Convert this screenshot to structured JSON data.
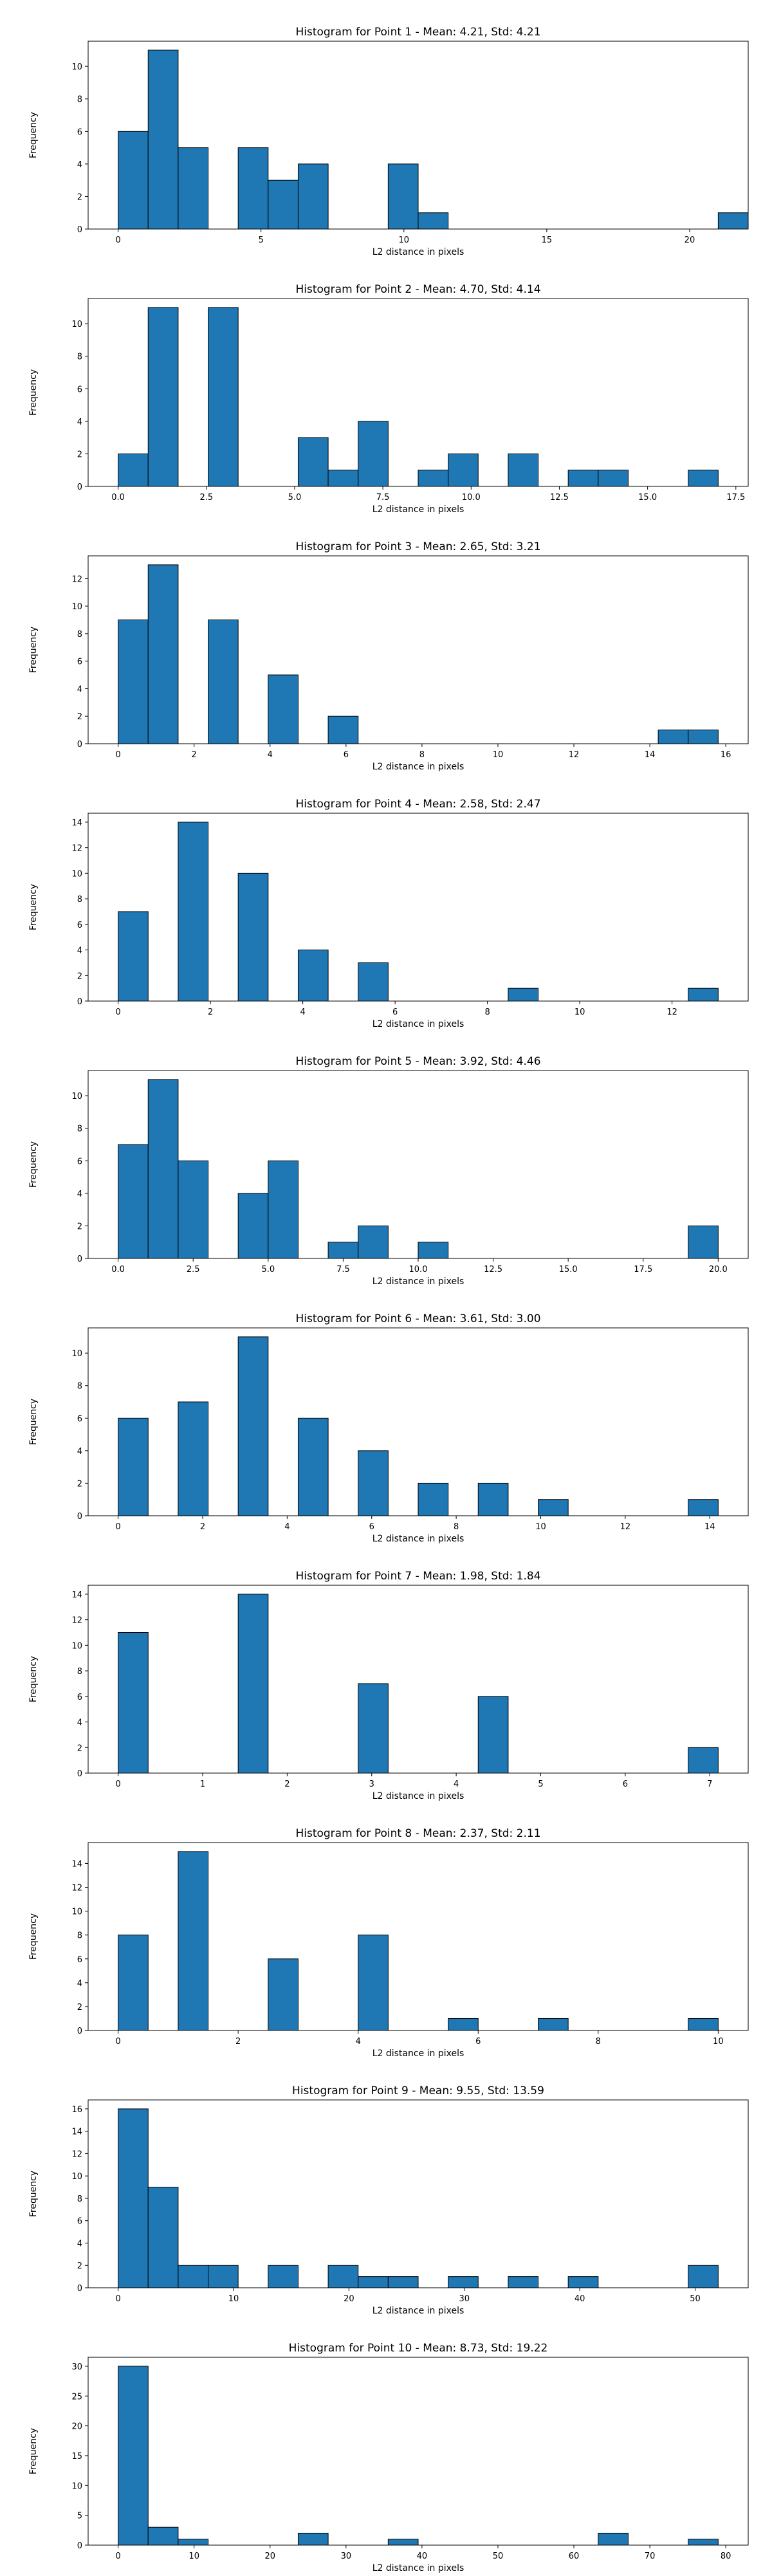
{
  "chart_data": [
    {
      "type": "bar",
      "title": "Histogram for Point 1 - Mean: 4.21, Std: 4.21",
      "xlabel": "L2 distance in pixels",
      "ylabel": "Frequency",
      "bin_width": 1.05,
      "xlim": [
        -1.05,
        22.05
      ],
      "ylim": [
        0,
        11.55
      ],
      "xticks": [
        0,
        5,
        10,
        15,
        20
      ],
      "yticks": [
        0,
        2,
        4,
        6,
        8,
        10
      ],
      "bins": [
        [
          0.0,
          6
        ],
        [
          1.05,
          11
        ],
        [
          2.1,
          5
        ],
        [
          4.2,
          5
        ],
        [
          5.25,
          3
        ],
        [
          6.3,
          4
        ],
        [
          9.45,
          4
        ],
        [
          10.5,
          1
        ],
        [
          21.0,
          1
        ]
      ],
      "color": "#1f77b4"
    },
    {
      "type": "bar",
      "title": "Histogram for Point 2 - Mean: 4.70, Std: 4.14",
      "xlabel": "L2 distance in pixels",
      "ylabel": "Frequency",
      "bin_width": 0.85,
      "xlim": [
        -0.85,
        17.85
      ],
      "ylim": [
        0,
        11.55
      ],
      "xticks": [
        0.0,
        2.5,
        5.0,
        7.5,
        10.0,
        12.5,
        15.0,
        17.5
      ],
      "yticks": [
        0,
        2,
        4,
        6,
        8,
        10
      ],
      "bins": [
        [
          0.0,
          2
        ],
        [
          0.85,
          11
        ],
        [
          2.55,
          11
        ],
        [
          5.1,
          3
        ],
        [
          5.95,
          1
        ],
        [
          6.8,
          4
        ],
        [
          8.5,
          1
        ],
        [
          9.35,
          2
        ],
        [
          11.05,
          2
        ],
        [
          12.75,
          1
        ],
        [
          13.6,
          1
        ],
        [
          16.15,
          1
        ]
      ],
      "color": "#1f77b4"
    },
    {
      "type": "bar",
      "title": "Histogram for Point 3 - Mean: 2.65, Std: 3.21",
      "xlabel": "L2 distance in pixels",
      "ylabel": "Frequency",
      "bin_width": 0.79,
      "xlim": [
        -0.79,
        16.59
      ],
      "ylim": [
        0,
        13.65
      ],
      "xticks": [
        0,
        2,
        4,
        6,
        8,
        10,
        12,
        14,
        16
      ],
      "yticks": [
        0,
        2,
        4,
        6,
        8,
        10,
        12
      ],
      "bins": [
        [
          0.0,
          9
        ],
        [
          0.79,
          13
        ],
        [
          2.37,
          9
        ],
        [
          3.95,
          5
        ],
        [
          5.53,
          2
        ],
        [
          14.22,
          1
        ],
        [
          15.01,
          1
        ]
      ],
      "color": "#1f77b4"
    },
    {
      "type": "bar",
      "title": "Histogram for Point 4 - Mean: 2.58, Std: 2.47",
      "xlabel": "L2 distance in pixels",
      "ylabel": "Frequency",
      "bin_width": 0.65,
      "xlim": [
        -0.65,
        13.65
      ],
      "ylim": [
        0,
        14.7
      ],
      "xticks": [
        0,
        2,
        4,
        6,
        8,
        10,
        12
      ],
      "yticks": [
        0,
        2,
        4,
        6,
        8,
        10,
        12,
        14
      ],
      "bins": [
        [
          0.0,
          7
        ],
        [
          1.3,
          14
        ],
        [
          2.6,
          10
        ],
        [
          3.9,
          4
        ],
        [
          5.2,
          3
        ],
        [
          8.45,
          1
        ],
        [
          12.35,
          1
        ]
      ],
      "color": "#1f77b4"
    },
    {
      "type": "bar",
      "title": "Histogram for Point 5 - Mean: 3.92, Std: 4.46",
      "xlabel": "L2 distance in pixels",
      "ylabel": "Frequency",
      "bin_width": 1.0,
      "xlim": [
        -1.0,
        21.0
      ],
      "ylim": [
        0,
        11.55
      ],
      "xticks": [
        0.0,
        2.5,
        5.0,
        7.5,
        10.0,
        12.5,
        15.0,
        17.5,
        20.0
      ],
      "yticks": [
        0,
        2,
        4,
        6,
        8,
        10
      ],
      "bins": [
        [
          0.0,
          7
        ],
        [
          1.0,
          11
        ],
        [
          2.0,
          6
        ],
        [
          4.0,
          4
        ],
        [
          5.0,
          6
        ],
        [
          7.0,
          1
        ],
        [
          8.0,
          2
        ],
        [
          10.0,
          1
        ],
        [
          19.0,
          2
        ]
      ],
      "color": "#1f77b4"
    },
    {
      "type": "bar",
      "title": "Histogram for Point 6 - Mean: 3.61, Std: 3.00",
      "xlabel": "L2 distance in pixels",
      "ylabel": "Frequency",
      "bin_width": 0.71,
      "xlim": [
        -0.71,
        14.91
      ],
      "ylim": [
        0,
        11.55
      ],
      "xticks": [
        0,
        2,
        4,
        6,
        8,
        10,
        12,
        14
      ],
      "yticks": [
        0,
        2,
        4,
        6,
        8,
        10
      ],
      "bins": [
        [
          0.0,
          6
        ],
        [
          1.42,
          7
        ],
        [
          2.84,
          11
        ],
        [
          4.26,
          6
        ],
        [
          5.68,
          4
        ],
        [
          7.1,
          2
        ],
        [
          8.52,
          2
        ],
        [
          9.94,
          1
        ],
        [
          13.49,
          1
        ]
      ],
      "color": "#1f77b4"
    },
    {
      "type": "bar",
      "title": "Histogram for Point 7 - Mean: 1.98, Std: 1.84",
      "xlabel": "L2 distance in pixels",
      "ylabel": "Frequency",
      "bin_width": 0.355,
      "xlim": [
        -0.355,
        7.455
      ],
      "ylim": [
        0,
        14.7
      ],
      "xticks": [
        0,
        1,
        2,
        3,
        4,
        5,
        6,
        7
      ],
      "yticks": [
        0,
        2,
        4,
        6,
        8,
        10,
        12,
        14
      ],
      "bins": [
        [
          0.0,
          11
        ],
        [
          1.42,
          14
        ],
        [
          2.84,
          7
        ],
        [
          4.26,
          6
        ],
        [
          6.745,
          2
        ]
      ],
      "color": "#1f77b4"
    },
    {
      "type": "bar",
      "title": "Histogram for Point 8 - Mean: 2.37, Std: 2.11",
      "xlabel": "L2 distance in pixels",
      "ylabel": "Frequency",
      "bin_width": 0.5,
      "xlim": [
        -0.5,
        10.5
      ],
      "ylim": [
        0,
        15.75
      ],
      "xticks": [
        0,
        2,
        4,
        6,
        8,
        10
      ],
      "yticks": [
        0,
        2,
        4,
        6,
        8,
        10,
        12,
        14
      ],
      "bins": [
        [
          0.0,
          8
        ],
        [
          1.0,
          15
        ],
        [
          2.5,
          6
        ],
        [
          4.0,
          8
        ],
        [
          5.5,
          1
        ],
        [
          7.0,
          1
        ],
        [
          9.5,
          1
        ]
      ],
      "color": "#1f77b4"
    },
    {
      "type": "bar",
      "title": "Histogram for Point 9 - Mean: 9.55, Std: 13.59",
      "xlabel": "L2 distance in pixels",
      "ylabel": "Frequency",
      "bin_width": 2.6,
      "xlim": [
        -2.6,
        54.6
      ],
      "ylim": [
        0,
        16.8
      ],
      "xticks": [
        0,
        10,
        20,
        30,
        40,
        50
      ],
      "yticks": [
        0,
        2,
        4,
        6,
        8,
        10,
        12,
        14,
        16
      ],
      "bins": [
        [
          0.0,
          16
        ],
        [
          2.6,
          9
        ],
        [
          5.2,
          2
        ],
        [
          7.8,
          2
        ],
        [
          13.0,
          2
        ],
        [
          18.2,
          2
        ],
        [
          20.8,
          1
        ],
        [
          23.4,
          1
        ],
        [
          28.6,
          1
        ],
        [
          33.8,
          1
        ],
        [
          39.0,
          1
        ],
        [
          49.4,
          2
        ]
      ],
      "color": "#1f77b4"
    },
    {
      "type": "bar",
      "title": "Histogram for Point 10 - Mean: 8.73, Std: 19.22",
      "xlabel": "L2 distance in pixels",
      "ylabel": "Frequency",
      "bin_width": 3.95,
      "xlim": [
        -3.95,
        82.95
      ],
      "ylim": [
        0,
        31.5
      ],
      "xticks": [
        0,
        10,
        20,
        30,
        40,
        50,
        60,
        70,
        80
      ],
      "yticks": [
        0,
        5,
        10,
        15,
        20,
        25,
        30
      ],
      "bins": [
        [
          0.0,
          30
        ],
        [
          3.95,
          3
        ],
        [
          7.9,
          1
        ],
        [
          23.7,
          2
        ],
        [
          35.55,
          1
        ],
        [
          63.2,
          2
        ],
        [
          75.05,
          1
        ]
      ],
      "color": "#1f77b4"
    }
  ]
}
